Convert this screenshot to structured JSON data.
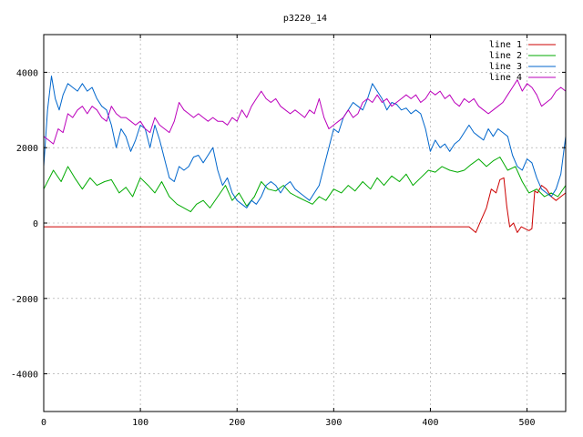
{
  "chart_data": {
    "type": "line",
    "title": "p3220_14",
    "xlabel": "",
    "ylabel": "",
    "xlim": [
      0,
      540
    ],
    "ylim": [
      -5000,
      5000
    ],
    "grid": true,
    "legend_position": "top-right",
    "x_ticks": [
      0,
      100,
      200,
      300,
      400,
      500
    ],
    "y_ticks": [
      -4000,
      -2000,
      0,
      2000,
      4000
    ],
    "series": [
      {
        "name": "line 1",
        "color": "#cc0000",
        "x": [
          0,
          50,
          100,
          150,
          200,
          250,
          300,
          350,
          400,
          440,
          447,
          452,
          458,
          463,
          468,
          472,
          476,
          479,
          482,
          486,
          490,
          494,
          498,
          502,
          505,
          508,
          511,
          515,
          520,
          525,
          530,
          535,
          540
        ],
        "y": [
          -100,
          -100,
          -100,
          -100,
          -100,
          -100,
          -100,
          -100,
          -100,
          -100,
          -250,
          50,
          400,
          900,
          800,
          1150,
          1200,
          450,
          -100,
          0,
          -250,
          -100,
          -150,
          -200,
          -150,
          850,
          800,
          1000,
          900,
          700,
          600,
          700,
          800
        ]
      },
      {
        "name": "line 2",
        "color": "#00aa00",
        "x": [
          0,
          10,
          18,
          25,
          32,
          40,
          48,
          55,
          63,
          70,
          78,
          85,
          92,
          100,
          108,
          115,
          122,
          130,
          138,
          145,
          152,
          158,
          165,
          172,
          180,
          188,
          195,
          202,
          210,
          218,
          225,
          232,
          240,
          248,
          255,
          262,
          270,
          278,
          285,
          292,
          300,
          308,
          315,
          322,
          330,
          338,
          345,
          352,
          360,
          368,
          375,
          382,
          390,
          398,
          405,
          412,
          420,
          428,
          435,
          442,
          450,
          458,
          465,
          472,
          480,
          488,
          495,
          502,
          510,
          518,
          525,
          532,
          540
        ],
        "y": [
          900,
          1400,
          1100,
          1500,
          1200,
          900,
          1200,
          1000,
          1100,
          1150,
          800,
          950,
          700,
          1200,
          1000,
          800,
          1100,
          700,
          500,
          400,
          300,
          500,
          600,
          400,
          700,
          1000,
          600,
          800,
          450,
          700,
          1100,
          900,
          850,
          1000,
          800,
          700,
          600,
          500,
          700,
          600,
          900,
          800,
          1000,
          850,
          1100,
          900,
          1200,
          1000,
          1250,
          1100,
          1300,
          1000,
          1200,
          1400,
          1350,
          1500,
          1400,
          1350,
          1400,
          1550,
          1700,
          1500,
          1650,
          1750,
          1400,
          1500,
          1100,
          800,
          900,
          700,
          800,
          700,
          1000
        ]
      },
      {
        "name": "line 3",
        "color": "#0066cc",
        "x": [
          0,
          4,
          8,
          12,
          16,
          20,
          25,
          30,
          35,
          40,
          45,
          50,
          55,
          60,
          65,
          70,
          75,
          80,
          85,
          90,
          95,
          100,
          105,
          110,
          115,
          120,
          125,
          130,
          135,
          140,
          145,
          150,
          155,
          160,
          165,
          170,
          175,
          180,
          185,
          190,
          195,
          200,
          205,
          210,
          215,
          220,
          225,
          230,
          235,
          240,
          245,
          250,
          255,
          260,
          265,
          270,
          275,
          280,
          285,
          290,
          295,
          300,
          305,
          310,
          315,
          320,
          325,
          330,
          335,
          340,
          345,
          350,
          355,
          360,
          365,
          370,
          375,
          380,
          385,
          390,
          395,
          400,
          405,
          410,
          415,
          420,
          425,
          430,
          435,
          440,
          445,
          450,
          455,
          460,
          465,
          470,
          475,
          480,
          485,
          490,
          495,
          500,
          505,
          510,
          515,
          520,
          525,
          530,
          535,
          540
        ],
        "y": [
          1500,
          3000,
          3900,
          3300,
          3000,
          3400,
          3700,
          3600,
          3500,
          3700,
          3500,
          3600,
          3300,
          3100,
          3000,
          2600,
          2000,
          2500,
          2300,
          1900,
          2200,
          2600,
          2500,
          2000,
          2600,
          2200,
          1700,
          1200,
          1100,
          1500,
          1400,
          1500,
          1750,
          1800,
          1600,
          1800,
          2000,
          1400,
          1000,
          1200,
          800,
          600,
          500,
          400,
          600,
          500,
          700,
          1000,
          1100,
          1000,
          800,
          1000,
          1100,
          900,
          800,
          700,
          600,
          800,
          1000,
          1500,
          2000,
          2500,
          2400,
          2800,
          3000,
          3200,
          3100,
          3000,
          3300,
          3700,
          3500,
          3300,
          3000,
          3200,
          3150,
          3000,
          3050,
          2900,
          3000,
          2900,
          2500,
          1900,
          2200,
          2000,
          2100,
          1900,
          2100,
          2200,
          2400,
          2600,
          2400,
          2300,
          2200,
          2500,
          2300,
          2500,
          2400,
          2300,
          1800,
          1500,
          1400,
          1700,
          1600,
          1200,
          900,
          800,
          700,
          900,
          1300,
          2300
        ]
      },
      {
        "name": "line 4",
        "color": "#bb00bb",
        "x": [
          0,
          5,
          10,
          15,
          20,
          25,
          30,
          35,
          40,
          45,
          50,
          55,
          60,
          65,
          70,
          75,
          80,
          85,
          90,
          95,
          100,
          105,
          110,
          115,
          120,
          125,
          130,
          135,
          140,
          145,
          150,
          155,
          160,
          165,
          170,
          175,
          180,
          185,
          190,
          195,
          200,
          205,
          210,
          215,
          220,
          225,
          230,
          235,
          240,
          245,
          250,
          255,
          260,
          265,
          270,
          275,
          280,
          285,
          290,
          295,
          300,
          305,
          310,
          315,
          320,
          325,
          330,
          335,
          340,
          345,
          350,
          355,
          360,
          365,
          370,
          375,
          380,
          385,
          390,
          395,
          400,
          405,
          410,
          415,
          420,
          425,
          430,
          435,
          440,
          445,
          450,
          455,
          460,
          465,
          470,
          475,
          480,
          485,
          490,
          495,
          500,
          505,
          510,
          515,
          520,
          525,
          530,
          535,
          540
        ],
        "y": [
          2300,
          2200,
          2100,
          2500,
          2400,
          2900,
          2800,
          3000,
          3100,
          2900,
          3100,
          3000,
          2800,
          2700,
          3100,
          2900,
          2800,
          2800,
          2700,
          2600,
          2700,
          2500,
          2400,
          2800,
          2600,
          2500,
          2400,
          2700,
          3200,
          3000,
          2900,
          2800,
          2900,
          2800,
          2700,
          2800,
          2700,
          2700,
          2600,
          2800,
          2700,
          3000,
          2800,
          3100,
          3300,
          3500,
          3300,
          3200,
          3300,
          3100,
          3000,
          2900,
          3000,
          2900,
          2800,
          3000,
          2900,
          3300,
          2800,
          2500,
          2600,
          2700,
          2800,
          3000,
          2800,
          2900,
          3200,
          3300,
          3200,
          3400,
          3200,
          3300,
          3100,
          3200,
          3300,
          3400,
          3300,
          3400,
          3200,
          3300,
          3500,
          3400,
          3500,
          3300,
          3400,
          3200,
          3100,
          3300,
          3200,
          3300,
          3100,
          3000,
          2900,
          3000,
          3100,
          3200,
          3400,
          3600,
          3800,
          3500,
          3700,
          3600,
          3400,
          3100,
          3200,
          3300,
          3500,
          3600,
          3500
        ]
      }
    ]
  }
}
